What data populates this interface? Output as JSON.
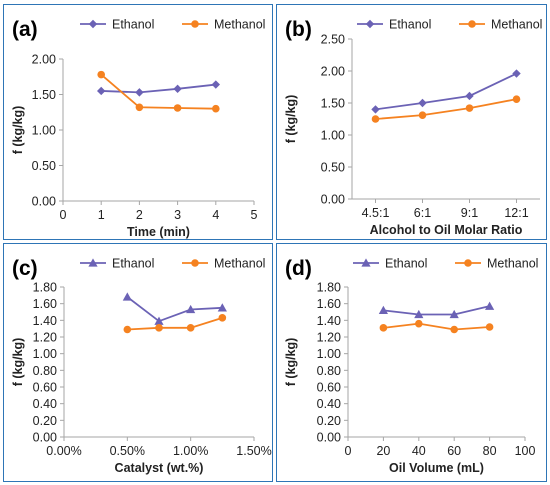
{
  "colors": {
    "ethanol": "#6b62b5",
    "methanol": "#f58220",
    "axis": "#a6a6a6",
    "border": "#2e75b6",
    "text": "#222222"
  },
  "chart_data": [
    {
      "panel_label": "(a)",
      "type": "line",
      "x_axis_kind": "numeric",
      "x": [
        1,
        2,
        3,
        4
      ],
      "xlim": [
        0,
        5
      ],
      "x_ticks": [
        "0",
        "1",
        "2",
        "3",
        "4",
        "5"
      ],
      "ylim": [
        0,
        2.0
      ],
      "y_ticks": [
        "0.00",
        "0.50",
        "1.00",
        "1.50",
        "2.00"
      ],
      "xlabel": "Time (min)",
      "ylabel": "f (kg/kg)",
      "legend": "top",
      "series": [
        {
          "name": "Ethanol",
          "marker": "diamond",
          "values": [
            1.55,
            1.53,
            1.58,
            1.64
          ]
        },
        {
          "name": "Methanol",
          "marker": "circle",
          "values": [
            1.78,
            1.32,
            1.31,
            1.3
          ]
        }
      ]
    },
    {
      "panel_label": "(b)",
      "type": "line",
      "x_axis_kind": "category",
      "categories": [
        "4.5:1",
        "6:1",
        "9:1",
        "12:1"
      ],
      "ylim": [
        0,
        2.5
      ],
      "y_ticks": [
        "0.00",
        "0.50",
        "1.00",
        "1.50",
        "2.00",
        "2.50"
      ],
      "xlabel": "Alcohol to Oil Molar Ratio",
      "ylabel": "f (kg/kg)",
      "legend": "top",
      "series": [
        {
          "name": "Ethanol",
          "marker": "diamond",
          "values": [
            1.4,
            1.5,
            1.61,
            1.96
          ]
        },
        {
          "name": "Methanol",
          "marker": "circle",
          "values": [
            1.25,
            1.31,
            1.42,
            1.56
          ]
        }
      ]
    },
    {
      "panel_label": "(c)",
      "type": "line",
      "x_axis_kind": "numeric",
      "x": [
        0.5,
        0.75,
        1.0,
        1.25
      ],
      "xlim": [
        0,
        1.5
      ],
      "x_ticks": [
        "0.00%",
        "0.50%",
        "1.00%",
        "1.50%"
      ],
      "ylim": [
        0,
        1.8
      ],
      "y_ticks": [
        "0.00",
        "0.20",
        "0.40",
        "0.60",
        "0.80",
        "1.00",
        "1.20",
        "1.40",
        "1.60",
        "1.80"
      ],
      "xlabel": "Catalyst (wt.%)",
      "ylabel": "f (kg/kg)",
      "legend": "top",
      "series": [
        {
          "name": "Ethanol",
          "marker": "triangle",
          "values": [
            1.68,
            1.39,
            1.53,
            1.55
          ]
        },
        {
          "name": "Methanol",
          "marker": "circle",
          "values": [
            1.29,
            1.31,
            1.31,
            1.43
          ]
        }
      ]
    },
    {
      "panel_label": "(d)",
      "type": "line",
      "x_axis_kind": "numeric",
      "x": [
        20,
        40,
        60,
        80
      ],
      "xlim": [
        0,
        100
      ],
      "x_ticks": [
        "0",
        "20",
        "40",
        "60",
        "80",
        "100"
      ],
      "ylim": [
        0,
        1.8
      ],
      "y_ticks": [
        "0.00",
        "0.20",
        "0.40",
        "0.60",
        "0.80",
        "1.00",
        "1.20",
        "1.40",
        "1.60",
        "1.80"
      ],
      "xlabel": "Oil Volume (mL)",
      "ylabel": "f (kg/kg)",
      "legend": "top",
      "series": [
        {
          "name": "Ethanol",
          "marker": "triangle",
          "values": [
            1.52,
            1.47,
            1.47,
            1.57
          ]
        },
        {
          "name": "Methanol",
          "marker": "circle",
          "values": [
            1.31,
            1.36,
            1.29,
            1.32
          ]
        }
      ]
    }
  ]
}
